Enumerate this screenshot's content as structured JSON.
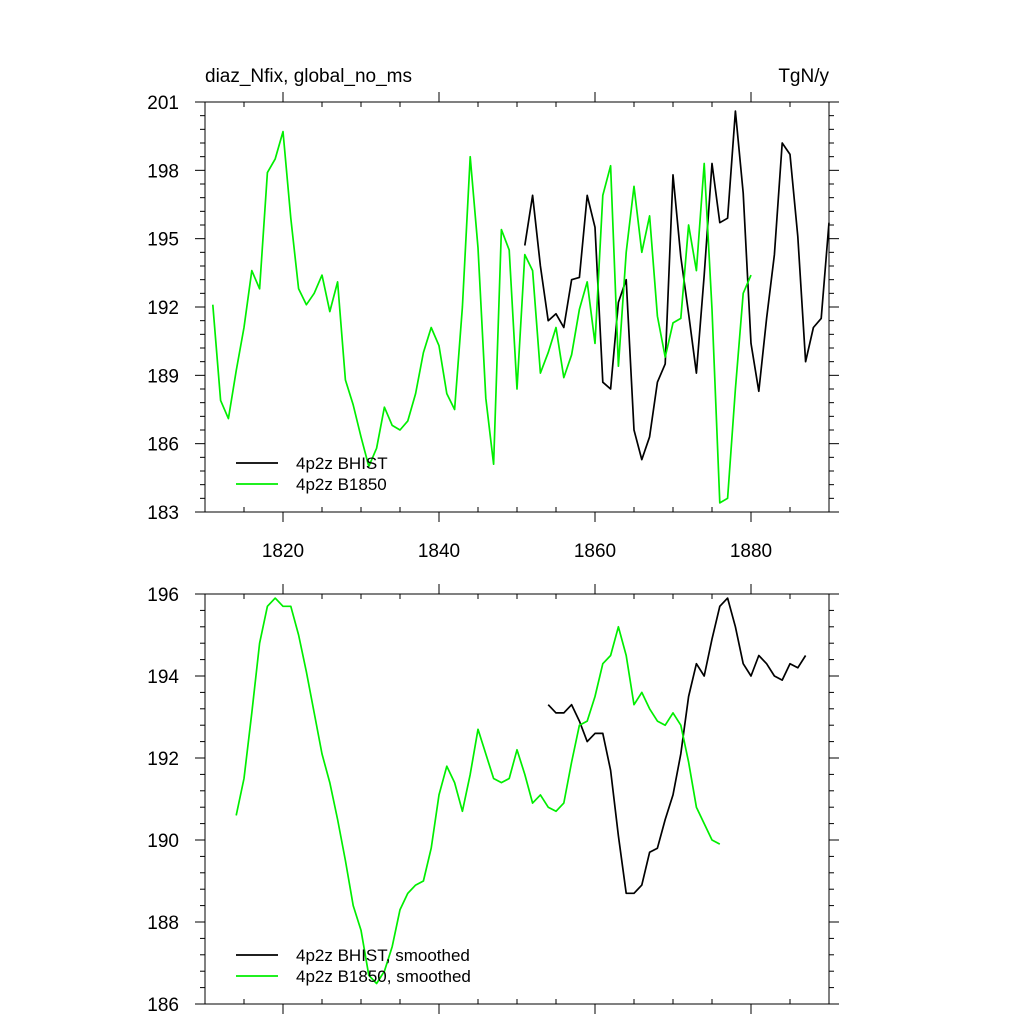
{
  "chart_data": [
    {
      "type": "line",
      "title": "diaz_Nfix, global_no_ms",
      "units": "TgN/y",
      "xlim": [
        1810,
        1890
      ],
      "ylim": [
        183,
        201
      ],
      "xticks": [
        1820,
        1840,
        1860,
        1880
      ],
      "yticks": [
        183,
        186,
        189,
        192,
        195,
        198,
        201
      ],
      "xtick_labels": [
        "1820",
        "1840",
        "1860",
        "1880"
      ],
      "ytick_labels": [
        "183",
        "186",
        "189",
        "192",
        "195",
        "198",
        "201"
      ],
      "legend_position": "bottom-left",
      "series": [
        {
          "name": "4p2z BHIST",
          "color": "#000000",
          "start_x": 1851,
          "values": [
            194.7,
            196.9,
            193.8,
            191.4,
            191.7,
            191.1,
            193.2,
            193.3,
            196.9,
            195.5,
            188.7,
            188.4,
            192.2,
            193.2,
            186.6,
            185.3,
            186.3,
            188.7,
            189.5,
            197.8,
            194.2,
            191.7,
            189.1,
            193.4,
            198.3,
            195.7,
            195.9,
            200.6,
            197.0,
            190.4,
            188.3,
            191.5,
            194.3,
            199.2,
            198.7,
            195.1,
            189.6,
            191.1,
            191.5,
            195.7
          ]
        },
        {
          "name": "4p2z B1850",
          "color": "#00ee00",
          "start_x": 1811,
          "values": [
            192.1,
            187.9,
            187.1,
            189.2,
            191.1,
            193.6,
            192.8,
            197.9,
            198.5,
            199.7,
            195.9,
            192.8,
            192.1,
            192.6,
            193.4,
            191.8,
            193.1,
            188.8,
            187.7,
            186.3,
            185.0,
            185.8,
            187.6,
            186.8,
            186.6,
            187.0,
            188.2,
            190.0,
            191.1,
            190.3,
            188.2,
            187.5,
            192.0,
            198.6,
            194.6,
            188.0,
            185.1,
            195.4,
            194.5,
            188.4,
            194.3,
            193.6,
            189.1,
            190.0,
            191.1,
            188.9,
            189.9,
            191.9,
            193.1,
            190.4,
            196.9,
            198.2,
            189.4,
            194.4,
            197.3,
            194.4,
            196.0,
            191.6,
            189.8,
            191.3,
            191.5,
            195.6,
            193.6,
            198.3,
            191.9,
            183.4,
            183.6,
            188.4,
            192.6,
            193.4
          ]
        }
      ]
    },
    {
      "type": "line",
      "title": "",
      "xlim": [
        1810,
        1890
      ],
      "ylim": [
        186,
        196
      ],
      "xticks": [
        1820,
        1840,
        1860,
        1880
      ],
      "yticks": [
        186,
        188,
        190,
        192,
        194,
        196
      ],
      "ytick_labels": [
        "186",
        "188",
        "190",
        "192",
        "194",
        "196"
      ],
      "legend_position": "bottom-left",
      "series": [
        {
          "name": "4p2z BHIST, smoothed",
          "color": "#000000",
          "start_x": 1854,
          "values": [
            193.3,
            193.1,
            193.1,
            193.3,
            192.9,
            192.4,
            192.6,
            192.6,
            191.7,
            190.1,
            188.7,
            188.7,
            188.9,
            189.7,
            189.8,
            190.5,
            191.1,
            192.1,
            193.5,
            194.3,
            194.0,
            194.9,
            195.7,
            195.9,
            195.2,
            194.3,
            194.0,
            194.5,
            194.3,
            194.0,
            193.9,
            194.3,
            194.2,
            194.5
          ]
        },
        {
          "name": "4p2z B1850, smoothed",
          "color": "#00ee00",
          "start_x": 1814,
          "values": [
            190.6,
            191.5,
            193.1,
            194.8,
            195.7,
            195.9,
            195.7,
            195.7,
            195.0,
            194.1,
            193.1,
            192.1,
            191.4,
            190.5,
            189.5,
            188.4,
            187.8,
            186.7,
            186.5,
            186.8,
            187.4,
            188.3,
            188.7,
            188.9,
            189.0,
            189.8,
            191.1,
            191.8,
            191.4,
            190.7,
            191.6,
            192.7,
            192.1,
            191.5,
            191.4,
            191.5,
            192.2,
            191.6,
            190.9,
            191.1,
            190.8,
            190.7,
            190.9,
            191.9,
            192.8,
            192.9,
            193.5,
            194.3,
            194.5,
            195.2,
            194.5,
            193.3,
            193.6,
            193.2,
            192.9,
            192.8,
            193.1,
            192.8,
            191.9,
            190.8,
            190.4,
            190.0,
            189.9
          ]
        }
      ]
    }
  ]
}
